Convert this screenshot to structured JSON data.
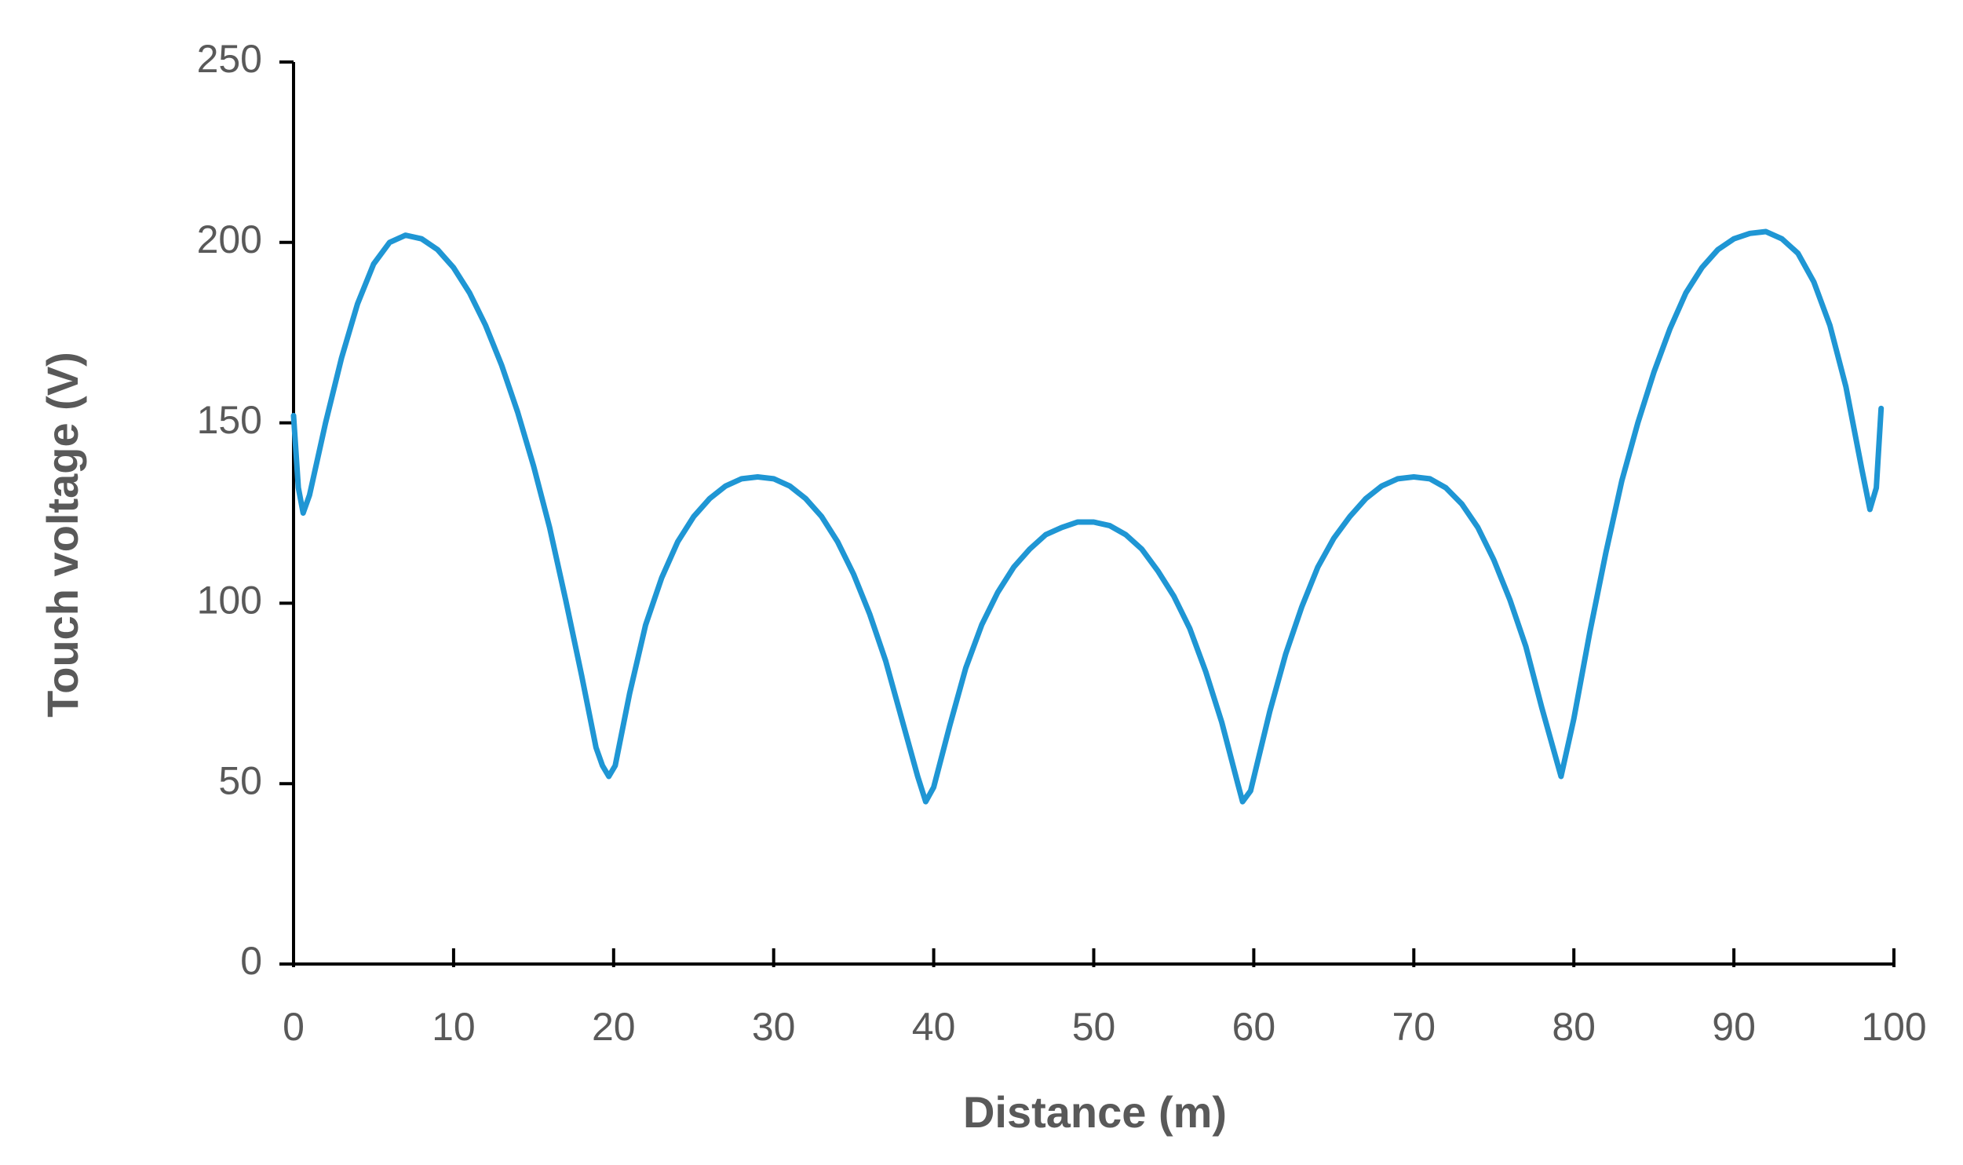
{
  "chart_data": {
    "type": "line",
    "x_label": "Distance (m)",
    "y_label": "Touch voltage (V)",
    "xlim": [
      0,
      100
    ],
    "xticks": [
      0,
      10,
      20,
      30,
      40,
      50,
      60,
      70,
      80,
      90,
      100
    ],
    "ylim": [
      0,
      250
    ],
    "yticks": [
      0,
      50,
      100,
      150,
      200,
      250
    ],
    "grid": false,
    "series": [
      {
        "color": "#1f96d4",
        "x": [
          0,
          0.3,
          0.6,
          1,
          2,
          3,
          4,
          5,
          6,
          7,
          8,
          9,
          10,
          11,
          12,
          13,
          14,
          15,
          16,
          17,
          18,
          18.9,
          19.3,
          19.7,
          20.1,
          21,
          22,
          23,
          24,
          25,
          26,
          27,
          28,
          29,
          30,
          31,
          32,
          33,
          34,
          35,
          36,
          37,
          38,
          39,
          39.5,
          40,
          41,
          42,
          43,
          44,
          45,
          46,
          47,
          48,
          49,
          50,
          51,
          52,
          53,
          54,
          55,
          56,
          57,
          58,
          59,
          59.3,
          59.8,
          61,
          62,
          63,
          64,
          65,
          66,
          67,
          68,
          69,
          70,
          71,
          72,
          73,
          74,
          75,
          76,
          77,
          78,
          79.2,
          80,
          81,
          82,
          83,
          84,
          85,
          86,
          87,
          88,
          89,
          90,
          91,
          92,
          93,
          94,
          95,
          96,
          97,
          98,
          98.5,
          98.9,
          99.2
        ],
        "values": [
          152,
          132,
          125,
          130,
          150,
          168,
          183,
          194,
          200,
          202,
          201,
          198,
          193,
          186,
          177,
          166,
          153,
          138,
          121,
          101,
          80,
          60,
          55,
          52,
          55,
          75,
          94,
          107,
          117,
          124,
          129,
          132.5,
          134.5,
          135,
          134.5,
          132.5,
          129,
          124,
          117,
          108,
          97,
          84,
          68,
          52,
          45,
          49,
          66,
          82,
          94,
          103,
          110,
          115,
          119,
          121,
          122.5,
          122.5,
          121.5,
          119,
          115,
          109,
          102,
          93,
          81,
          67,
          50,
          45,
          48,
          70,
          86,
          99,
          110,
          118,
          124,
          129,
          132.5,
          134.5,
          135,
          134.5,
          132,
          127.5,
          121,
          112,
          101,
          88,
          71,
          52,
          68,
          92,
          114,
          134,
          150,
          164,
          176,
          186,
          193,
          198,
          201,
          202.5,
          203,
          201,
          197,
          189,
          177,
          160,
          137,
          126,
          132,
          154
        ]
      }
    ]
  }
}
